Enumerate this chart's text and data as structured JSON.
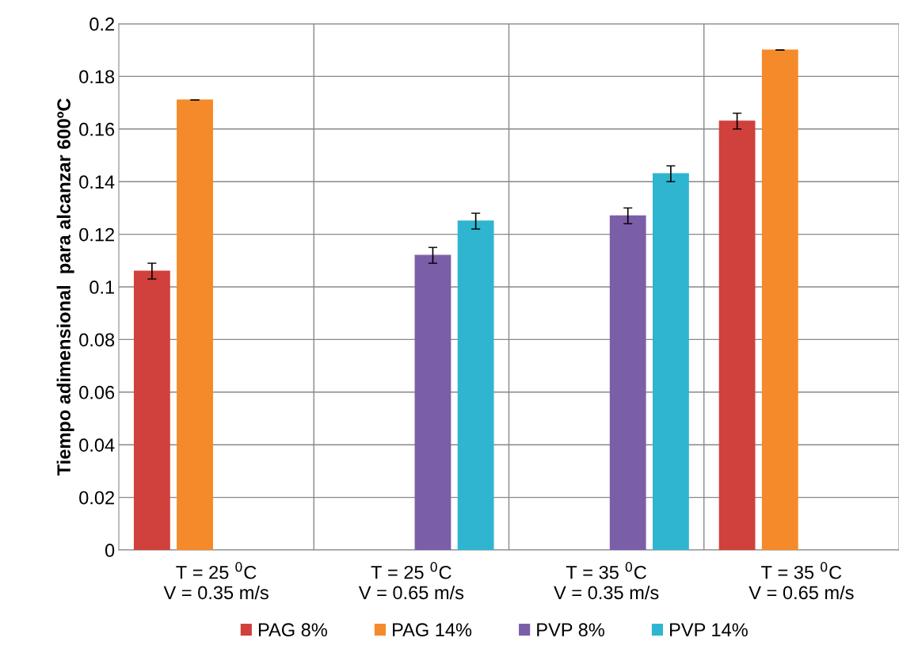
{
  "chart_data": {
    "type": "bar",
    "ylabel": "Tiempo adimensional  para alcanzar 600ºC",
    "categories": [
      "T = 25 $^{0}$C\nV = 0.35 m/s",
      "T = 25 $^{0}$C\nV = 0.65 m/s",
      "T = 35 $^{0}$C\nV = 0.35 m/s",
      "T = 35 $^{0}$C\nV = 0.65 m/s"
    ],
    "series": [
      {
        "name": "PAG 8%",
        "color": "#d0403c",
        "values": [
          0.106,
          null,
          null,
          0.163
        ],
        "errors": [
          0.003,
          null,
          null,
          0.003
        ]
      },
      {
        "name": "PAG 14%",
        "color": "#f58a2a",
        "values": [
          0.171,
          null,
          null,
          0.19
        ],
        "errors": [
          0,
          null,
          null,
          0
        ]
      },
      {
        "name": "PVP 8%",
        "color": "#7b5ea8",
        "values": [
          null,
          0.112,
          0.127,
          null
        ],
        "errors": [
          null,
          0.003,
          0.003,
          null
        ]
      },
      {
        "name": "PVP 14%",
        "color": "#2fb5d0",
        "values": [
          null,
          0.125,
          0.143,
          null
        ],
        "errors": [
          null,
          0.003,
          0.003,
          null
        ]
      }
    ],
    "ylim": [
      0,
      0.2
    ],
    "yticks": [
      0,
      0.02,
      0.04,
      0.06,
      0.08,
      0.1,
      0.12,
      0.14,
      0.16,
      0.18,
      0.2
    ],
    "grid": true,
    "legend": "bottom"
  }
}
